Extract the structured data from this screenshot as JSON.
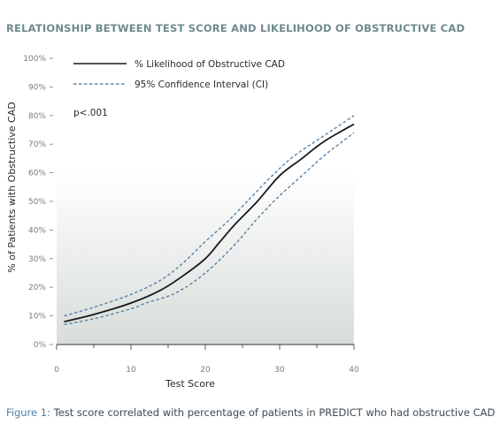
{
  "title": "RELATIONSHIP BETWEEN TEST SCORE AND LIKELIHOOD OF OBSTRUCTIVE CAD",
  "caption": {
    "label": "Figure 1:",
    "text": "Test score correlated with percentage of patients in PREDICT who had obstructive CAD"
  },
  "colors": {
    "title": "#6e8a8e",
    "main_line": "#1a1a1a",
    "ci_line": "#5b83a6",
    "caption_label": "#4f7fa7",
    "background_gradient_bottom": "#d7ddd9"
  },
  "chart_data": {
    "type": "line",
    "xlabel": "Test Score",
    "ylabel": "% of Patients with Obstructive CAD",
    "xlim": [
      0,
      40
    ],
    "ylim": [
      0,
      100
    ],
    "x_ticks": [
      "0",
      "10",
      "20",
      "30",
      "40"
    ],
    "y_ticks": [
      "0%",
      "10%",
      "20%",
      "30%",
      "40%",
      "50%",
      "60%",
      "70%",
      "80%",
      "90%",
      "100%"
    ],
    "legend_position": "top",
    "annotation": "p<.001",
    "series": [
      {
        "name": "% Likelihood of Obstructive CAD",
        "style": "solid",
        "x": [
          1,
          5,
          10,
          14,
          17,
          20,
          22,
          24,
          27,
          30,
          33,
          36,
          40
        ],
        "y": [
          8,
          10.5,
          14.5,
          19,
          24,
          30,
          36,
          42,
          50,
          59,
          65,
          71,
          77
        ]
      },
      {
        "name": "95% Confidence Interval (CI)",
        "style": "dashed",
        "x": [
          1,
          5,
          10,
          14,
          17,
          20,
          23,
          26,
          29,
          32,
          36,
          40
        ],
        "y": [
          10,
          13,
          17.5,
          22.5,
          28.5,
          36,
          43,
          51,
          59,
          66,
          73,
          80
        ]
      },
      {
        "style": "dashed",
        "x": [
          1,
          5,
          10,
          12,
          16,
          20,
          24,
          27,
          30,
          33,
          36,
          40
        ],
        "y": [
          7,
          9,
          12.5,
          14.5,
          18,
          25,
          35,
          44,
          52,
          59,
          66,
          74
        ]
      }
    ]
  }
}
